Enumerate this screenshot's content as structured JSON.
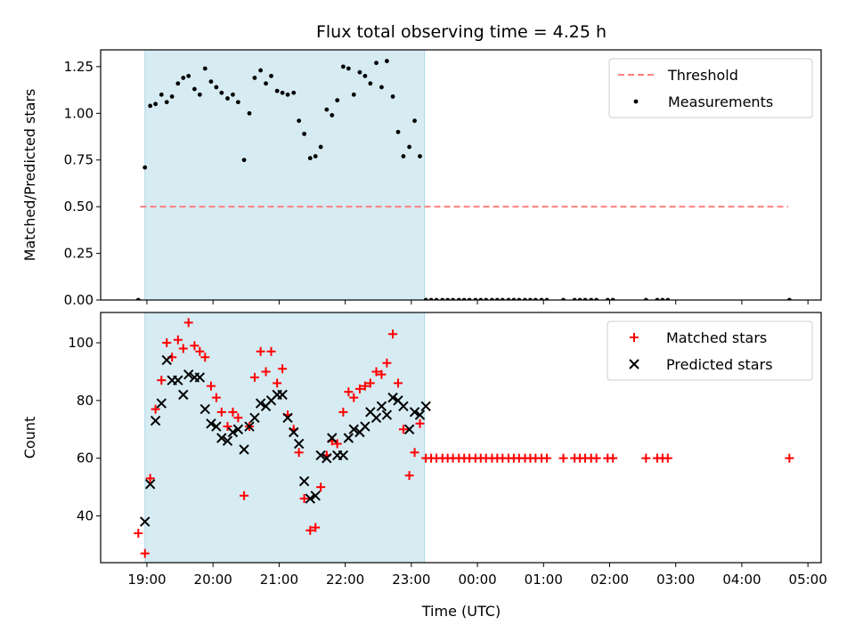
{
  "chart_data": {
    "type": "scatter",
    "title": "Flux total observing time = 4.25 h",
    "xlabel": "Time (UTC)",
    "x_tick_labels": [
      "19:00",
      "20:00",
      "21:00",
      "22:00",
      "23:00",
      "00:00",
      "01:00",
      "02:00",
      "03:00",
      "04:00",
      "05:00"
    ],
    "x_range_hours": [
      18.3,
      29.2
    ],
    "observing_window_hours": [
      18.97,
      23.2
    ],
    "colors": {
      "shade": "#add8e6",
      "threshold": "#ff7f7f",
      "measurement": "#000000",
      "matched": "#ff0000",
      "predicted": "#000000"
    },
    "panels": [
      {
        "name": "ratio",
        "ylabel": "Matched/Predicted stars",
        "ylim": [
          0,
          1.34
        ],
        "y_ticks": [
          "0.00",
          "0.25",
          "0.50",
          "0.75",
          "1.00",
          "1.25"
        ],
        "threshold": {
          "name": "Threshold",
          "y": 0.5,
          "x_range": [
            18.9,
            28.7
          ]
        },
        "legend": [
          "Threshold",
          "Measurements"
        ],
        "series": [
          {
            "name": "Measurements",
            "marker": "dot",
            "x": [
              18.87,
              18.97,
              19.05,
              19.13,
              19.22,
              19.3,
              19.38,
              19.47,
              19.55,
              19.63,
              19.72,
              19.8,
              19.88,
              19.97,
              20.05,
              20.13,
              20.22,
              20.3,
              20.38,
              20.47,
              20.55,
              20.63,
              20.72,
              20.8,
              20.88,
              20.97,
              21.05,
              21.13,
              21.22,
              21.3,
              21.38,
              21.47,
              21.55,
              21.63,
              21.72,
              21.8,
              21.88,
              21.97,
              22.05,
              22.13,
              22.22,
              22.3,
              22.38,
              22.47,
              22.55,
              22.63,
              22.72,
              22.8,
              22.88,
              22.97,
              23.05,
              23.13,
              23.22,
              23.3,
              23.38,
              23.47,
              23.55,
              23.63,
              23.72,
              23.8,
              23.88,
              23.97,
              24.05,
              24.13,
              24.22,
              24.3,
              24.38,
              24.47,
              24.55,
              24.63,
              24.72,
              24.8,
              24.88,
              24.97,
              25.05,
              25.3,
              25.47,
              25.55,
              25.63,
              25.72,
              25.8,
              25.97,
              26.05,
              26.55,
              26.72,
              26.8,
              26.88,
              28.72
            ],
            "y": [
              0.0,
              0.71,
              1.04,
              1.05,
              1.1,
              1.06,
              1.09,
              1.16,
              1.19,
              1.2,
              1.13,
              1.1,
              1.24,
              1.17,
              1.14,
              1.11,
              1.08,
              1.1,
              1.06,
              0.75,
              1.0,
              1.19,
              1.23,
              1.16,
              1.2,
              1.12,
              1.11,
              1.1,
              1.11,
              0.96,
              0.89,
              0.76,
              0.77,
              0.82,
              1.02,
              0.99,
              1.07,
              1.25,
              1.24,
              1.1,
              1.22,
              1.2,
              1.16,
              1.27,
              1.14,
              1.28,
              1.09,
              0.9,
              0.77,
              0.82,
              0.96,
              0.77,
              0,
              0,
              0,
              0,
              0,
              0,
              0,
              0,
              0,
              0,
              0,
              0,
              0,
              0,
              0,
              0,
              0,
              0,
              0,
              0,
              0,
              0,
              0,
              0,
              0,
              0,
              0,
              0,
              0,
              0,
              0,
              0,
              0,
              0,
              0,
              0
            ]
          }
        ]
      },
      {
        "name": "counts",
        "ylabel": "Count",
        "ylim": [
          23.8,
          110.5
        ],
        "y_ticks": [
          "40",
          "60",
          "80",
          "100"
        ],
        "legend": [
          "Matched stars",
          "Predicted stars"
        ],
        "series": [
          {
            "name": "Matched stars",
            "marker": "plus",
            "x": [
              18.87,
              18.97,
              19.05,
              19.13,
              19.22,
              19.3,
              19.38,
              19.47,
              19.55,
              19.63,
              19.72,
              19.8,
              19.88,
              19.97,
              20.05,
              20.13,
              20.22,
              20.3,
              20.38,
              20.47,
              20.55,
              20.63,
              20.72,
              20.8,
              20.88,
              20.97,
              21.05,
              21.13,
              21.22,
              21.3,
              21.38,
              21.47,
              21.55,
              21.63,
              21.72,
              21.8,
              21.88,
              21.97,
              22.05,
              22.13,
              22.22,
              22.3,
              22.38,
              22.47,
              22.55,
              22.63,
              22.72,
              22.8,
              22.88,
              22.97,
              23.05,
              23.13,
              23.22,
              23.3,
              23.38,
              23.47,
              23.55,
              23.63,
              23.72,
              23.8,
              23.88,
              23.97,
              24.05,
              24.13,
              24.22,
              24.3,
              24.38,
              24.47,
              24.55,
              24.63,
              24.72,
              24.8,
              24.88,
              24.97,
              25.05,
              25.3,
              25.47,
              25.55,
              25.63,
              25.72,
              25.8,
              25.97,
              26.05,
              26.55,
              26.72,
              26.8,
              26.88,
              28.72
            ],
            "y": [
              34,
              27,
              53,
              77,
              87,
              100,
              95,
              101,
              98,
              107,
              99,
              97,
              95,
              85,
              81,
              76,
              71,
              76,
              74,
              47,
              71,
              88,
              97,
              90,
              97,
              86,
              91,
              75,
              70,
              62,
              46,
              35,
              36,
              50,
              61,
              66,
              65,
              76,
              83,
              81,
              84,
              85,
              86,
              90,
              89,
              93,
              103,
              86,
              70,
              54,
              62,
              72,
              60,
              60,
              60,
              60,
              60,
              60,
              60,
              60,
              60,
              60,
              60,
              60,
              60,
              60,
              60,
              60,
              60,
              60,
              60,
              60,
              60,
              60,
              60,
              60,
              60,
              60,
              60,
              60,
              60,
              60,
              60,
              60,
              60,
              60,
              60,
              60
            ]
          },
          {
            "name": "Predicted stars",
            "marker": "x",
            "x": [
              18.97,
              19.05,
              19.13,
              19.22,
              19.3,
              19.38,
              19.47,
              19.55,
              19.63,
              19.72,
              19.8,
              19.88,
              19.97,
              20.05,
              20.13,
              20.22,
              20.3,
              20.38,
              20.47,
              20.55,
              20.63,
              20.72,
              20.8,
              20.88,
              20.97,
              21.05,
              21.13,
              21.22,
              21.3,
              21.38,
              21.47,
              21.55,
              21.63,
              21.72,
              21.8,
              21.88,
              21.97,
              22.05,
              22.13,
              22.22,
              22.3,
              22.38,
              22.47,
              22.55,
              22.63,
              22.72,
              22.8,
              22.88,
              22.97,
              23.05,
              23.13,
              23.22
            ],
            "y": [
              38,
              51,
              73,
              79,
              94,
              87,
              87,
              82,
              89,
              88,
              88,
              77,
              72,
              71,
              67,
              66,
              69,
              70,
              63,
              71,
              74,
              79,
              78,
              80,
              82,
              82,
              74,
              69,
              65,
              52,
              46,
              47,
              61,
              60,
              67,
              61,
              61,
              67,
              70,
              69,
              71,
              76,
              74,
              78,
              75,
              81,
              80,
              78,
              70,
              76,
              75,
              78
            ]
          }
        ]
      }
    ]
  }
}
